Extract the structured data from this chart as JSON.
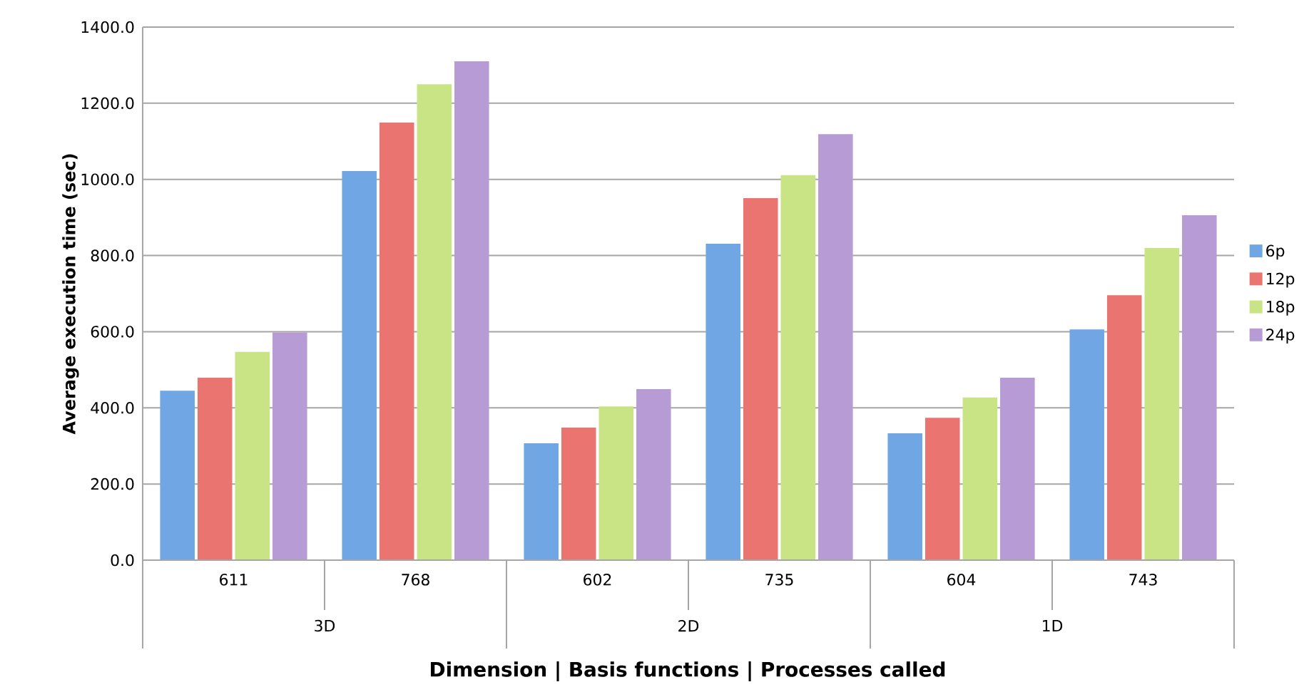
{
  "chart_data": {
    "type": "bar",
    "xlabel": "Dimension | Basis functions | Processes called",
    "ylabel": "Average execution time (sec)",
    "categories": [
      "611",
      "768",
      "602",
      "735",
      "604",
      "743"
    ],
    "series": [
      {
        "name": "6p",
        "color": "#6fa6e3",
        "values": [
          445,
          1022,
          307,
          831,
          333,
          606
        ]
      },
      {
        "name": "12p",
        "color": "#ea7570",
        "values": [
          479,
          1149,
          348,
          951,
          374,
          696
        ]
      },
      {
        "name": "18p",
        "color": "#c9e485",
        "values": [
          547,
          1250,
          404,
          1011,
          427,
          820
        ]
      },
      {
        "name": "24p",
        "color": "#b79bd4",
        "values": [
          598,
          1310,
          449,
          1119,
          479,
          906
        ]
      }
    ],
    "annotations": [
      "3D",
      "2D",
      "1D"
    ],
    "ylim": [
      0,
      1400
    ],
    "yticks": [
      {
        "value": 0,
        "label": "0.0"
      },
      {
        "value": 200,
        "label": "200.0"
      },
      {
        "value": 400,
        "label": "400.0"
      },
      {
        "value": 600,
        "label": "600.0"
      },
      {
        "value": 800,
        "label": "800.0"
      },
      {
        "value": 1000,
        "label": "1000.0"
      },
      {
        "value": 1200,
        "label": "1200.0"
      },
      {
        "value": 1400,
        "label": "1400.0"
      }
    ],
    "grid": "y",
    "legend": "right"
  }
}
